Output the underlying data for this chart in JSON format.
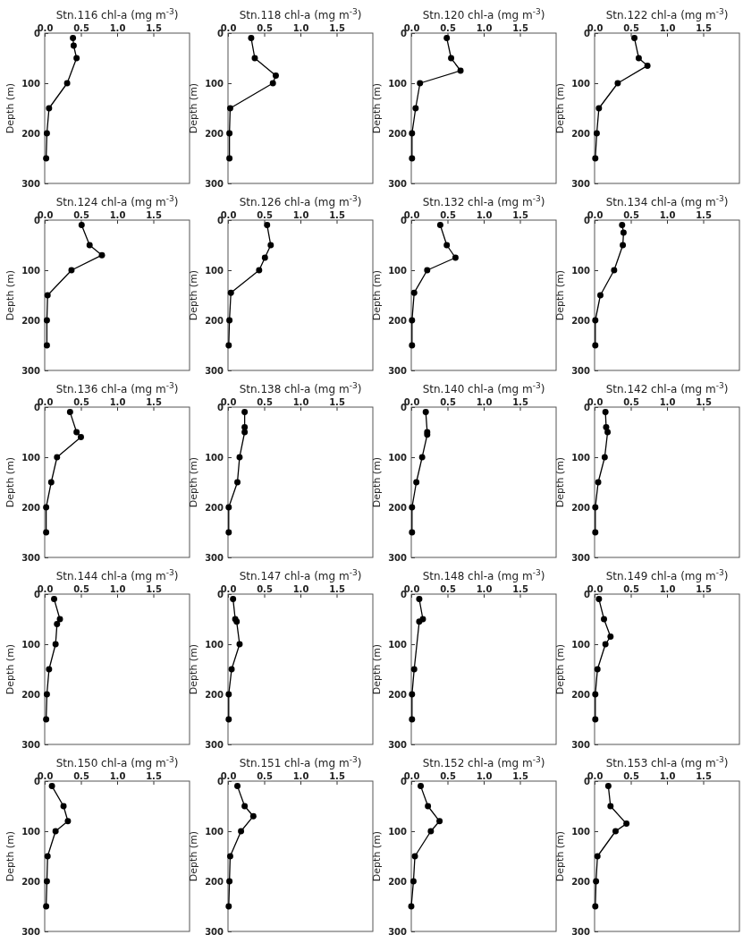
{
  "chart_data": [
    {
      "type": "line",
      "title": "Stn.116 chl-a (mg m$^{-3}$)",
      "ylabel": "Depth (m)",
      "x": [
        0.39,
        0.4,
        0.44,
        0.31,
        0.06,
        0.03,
        0.02
      ],
      "values": [
        10,
        25,
        50,
        100,
        150,
        200,
        250
      ],
      "color": "#000000",
      "marker": "circle",
      "line_style": "solid",
      "xlim": [
        0,
        2
      ],
      "ylim": [
        300,
        0
      ],
      "xticks": [
        {
          "value": 0,
          "label": "0.0"
        },
        {
          "value": 0.5,
          "label": "0.5"
        },
        {
          "value": 1,
          "label": "1.0"
        },
        {
          "value": 1.5,
          "label": "1.5"
        }
      ],
      "yticks": [
        0,
        100,
        200,
        300
      ],
      "grid": false
    },
    {
      "type": "line",
      "title": "Stn.118 chl-a (mg m$^{-3}$)",
      "ylabel": "Depth (m)",
      "x": [
        0.32,
        0.37,
        0.66,
        0.62,
        0.03,
        0.02,
        0.02
      ],
      "values": [
        10,
        50,
        85,
        100,
        150,
        200,
        250
      ],
      "color": "#000000",
      "marker": "circle",
      "line_style": "solid",
      "xlim": [
        0,
        2
      ],
      "ylim": [
        300,
        0
      ],
      "xticks": [
        {
          "value": 0,
          "label": "0.0"
        },
        {
          "value": 0.5,
          "label": "0.5"
        },
        {
          "value": 1,
          "label": "1.0"
        },
        {
          "value": 1.5,
          "label": "1.5"
        }
      ],
      "yticks": [
        0,
        100,
        200,
        300
      ],
      "grid": false
    },
    {
      "type": "line",
      "title": "Stn.120 chl-a (mg m$^{-3}$)",
      "ylabel": "Depth (m)",
      "x": [
        0.49,
        0.55,
        0.68,
        0.12,
        0.06,
        0.01,
        0.01
      ],
      "values": [
        10,
        50,
        75,
        100,
        150,
        200,
        250
      ],
      "color": "#000000",
      "marker": "circle",
      "line_style": "solid",
      "xlim": [
        0,
        2
      ],
      "ylim": [
        300,
        0
      ],
      "xticks": [
        {
          "value": 0,
          "label": "0.0"
        },
        {
          "value": 0.5,
          "label": "0.5"
        },
        {
          "value": 1,
          "label": "1.0"
        },
        {
          "value": 1.5,
          "label": "1.5"
        }
      ],
      "yticks": [
        0,
        100,
        200,
        300
      ],
      "grid": false
    },
    {
      "type": "line",
      "title": "Stn.122 chl-a (mg m$^{-3}$)",
      "ylabel": "Depth (m)",
      "x": [
        0.55,
        0.61,
        0.73,
        0.32,
        0.06,
        0.03,
        0.01
      ],
      "values": [
        10,
        50,
        65,
        100,
        150,
        200,
        250
      ],
      "color": "#000000",
      "marker": "circle",
      "line_style": "solid",
      "xlim": [
        0,
        2
      ],
      "ylim": [
        300,
        0
      ],
      "xticks": [
        {
          "value": 0,
          "label": "0.0"
        },
        {
          "value": 0.5,
          "label": "0.5"
        },
        {
          "value": 1,
          "label": "1.0"
        },
        {
          "value": 1.5,
          "label": "1.5"
        }
      ],
      "yticks": [
        0,
        100,
        200,
        300
      ],
      "grid": false
    },
    {
      "type": "line",
      "title": "Stn.124 chl-a (mg m$^{-3}$)",
      "ylabel": "Depth (m)",
      "x": [
        0.51,
        0.62,
        0.79,
        0.37,
        0.04,
        0.03,
        0.03
      ],
      "values": [
        10,
        50,
        70,
        100,
        150,
        200,
        250
      ],
      "color": "#000000",
      "marker": "circle",
      "line_style": "solid",
      "xlim": [
        0,
        2
      ],
      "ylim": [
        300,
        0
      ],
      "xticks": [
        {
          "value": 0,
          "label": "0.0"
        },
        {
          "value": 0.5,
          "label": "0.5"
        },
        {
          "value": 1,
          "label": "1.0"
        },
        {
          "value": 1.5,
          "label": "1.5"
        }
      ],
      "yticks": [
        0,
        100,
        200,
        300
      ],
      "grid": false
    },
    {
      "type": "line",
      "title": "Stn.126 chl-a (mg m$^{-3}$)",
      "ylabel": "Depth (m)",
      "x": [
        0.54,
        0.59,
        0.51,
        0.43,
        0.04,
        0.02,
        0.01
      ],
      "values": [
        10,
        50,
        75,
        100,
        145,
        200,
        250
      ],
      "color": "#000000",
      "marker": "circle",
      "line_style": "solid",
      "xlim": [
        0,
        2
      ],
      "ylim": [
        300,
        0
      ],
      "xticks": [
        {
          "value": 0,
          "label": "0.0"
        },
        {
          "value": 0.5,
          "label": "0.5"
        },
        {
          "value": 1,
          "label": "1.0"
        },
        {
          "value": 1.5,
          "label": "1.5"
        }
      ],
      "yticks": [
        0,
        100,
        200,
        300
      ],
      "grid": false
    },
    {
      "type": "line",
      "title": "Stn.132 chl-a (mg m$^{-3}$)",
      "ylabel": "Depth (m)",
      "x": [
        0.4,
        0.49,
        0.61,
        0.22,
        0.04,
        0.01,
        0.01
      ],
      "values": [
        10,
        50,
        75,
        100,
        145,
        200,
        250
      ],
      "color": "#000000",
      "marker": "circle",
      "line_style": "solid",
      "xlim": [
        0,
        2
      ],
      "ylim": [
        300,
        0
      ],
      "xticks": [
        {
          "value": 0,
          "label": "0.0"
        },
        {
          "value": 0.5,
          "label": "0.5"
        },
        {
          "value": 1,
          "label": "1.0"
        },
        {
          "value": 1.5,
          "label": "1.5"
        }
      ],
      "yticks": [
        0,
        100,
        200,
        300
      ],
      "grid": false
    },
    {
      "type": "line",
      "title": "Stn.134 chl-a (mg m$^{-3}$)",
      "ylabel": "Depth (m)",
      "x": [
        0.38,
        0.4,
        0.39,
        0.27,
        0.08,
        0.01,
        0.01
      ],
      "values": [
        10,
        25,
        50,
        100,
        150,
        200,
        250
      ],
      "color": "#000000",
      "marker": "circle",
      "line_style": "solid",
      "xlim": [
        0,
        2
      ],
      "ylim": [
        300,
        0
      ],
      "xticks": [
        {
          "value": 0,
          "label": "0.0"
        },
        {
          "value": 0.5,
          "label": "0.5"
        },
        {
          "value": 1,
          "label": "1.0"
        },
        {
          "value": 1.5,
          "label": "1.5"
        }
      ],
      "yticks": [
        0,
        100,
        200,
        300
      ],
      "grid": false
    },
    {
      "type": "line",
      "title": "Stn.136 chl-a (mg m$^{-3}$)",
      "ylabel": "Depth (m)",
      "x": [
        0.35,
        0.44,
        0.5,
        0.17,
        0.09,
        0.02,
        0.02
      ],
      "values": [
        10,
        50,
        60,
        100,
        150,
        200,
        250
      ],
      "color": "#000000",
      "marker": "circle",
      "line_style": "solid",
      "xlim": [
        0,
        2
      ],
      "ylim": [
        300,
        0
      ],
      "xticks": [
        {
          "value": 0,
          "label": "0.0"
        },
        {
          "value": 0.5,
          "label": "0.5"
        },
        {
          "value": 1,
          "label": "1.0"
        },
        {
          "value": 1.5,
          "label": "1.5"
        }
      ],
      "yticks": [
        0,
        100,
        200,
        300
      ],
      "grid": false
    },
    {
      "type": "line",
      "title": "Stn.138 chl-a (mg m$^{-3}$)",
      "ylabel": "Depth (m)",
      "x": [
        0.23,
        0.23,
        0.23,
        0.16,
        0.13,
        0.01,
        0.01
      ],
      "values": [
        10,
        40,
        50,
        100,
        150,
        200,
        250
      ],
      "color": "#000000",
      "marker": "circle",
      "line_style": "solid",
      "xlim": [
        0,
        2
      ],
      "ylim": [
        300,
        0
      ],
      "xticks": [
        {
          "value": 0,
          "label": "0.0"
        },
        {
          "value": 0.5,
          "label": "0.5"
        },
        {
          "value": 1,
          "label": "1.0"
        },
        {
          "value": 1.5,
          "label": "1.5"
        }
      ],
      "yticks": [
        0,
        100,
        200,
        300
      ],
      "grid": false
    },
    {
      "type": "line",
      "title": "Stn.140 chl-a (mg m$^{-3}$)",
      "ylabel": "Depth (m)",
      "x": [
        0.2,
        0.22,
        0.22,
        0.15,
        0.07,
        0.01,
        0.01
      ],
      "values": [
        10,
        50,
        55,
        100,
        150,
        200,
        250
      ],
      "color": "#000000",
      "marker": "circle",
      "line_style": "solid",
      "xlim": [
        0,
        2
      ],
      "ylim": [
        300,
        0
      ],
      "xticks": [
        {
          "value": 0,
          "label": "0.0"
        },
        {
          "value": 0.5,
          "label": "0.5"
        },
        {
          "value": 1,
          "label": "1.0"
        },
        {
          "value": 1.5,
          "label": "1.5"
        }
      ],
      "yticks": [
        0,
        100,
        200,
        300
      ],
      "grid": false
    },
    {
      "type": "line",
      "title": "Stn.142 chl-a (mg m$^{-3}$)",
      "ylabel": "Depth (m)",
      "x": [
        0.15,
        0.16,
        0.18,
        0.14,
        0.05,
        0.01,
        0.01
      ],
      "values": [
        10,
        40,
        50,
        100,
        150,
        200,
        250
      ],
      "color": "#000000",
      "marker": "circle",
      "line_style": "solid",
      "xlim": [
        0,
        2
      ],
      "ylim": [
        300,
        0
      ],
      "xticks": [
        {
          "value": 0,
          "label": "0.0"
        },
        {
          "value": 0.5,
          "label": "0.5"
        },
        {
          "value": 1,
          "label": "1.0"
        },
        {
          "value": 1.5,
          "label": "1.5"
        }
      ],
      "yticks": [
        0,
        100,
        200,
        300
      ],
      "grid": false
    },
    {
      "type": "line",
      "title": "Stn.144 chl-a (mg m$^{-3}$)",
      "ylabel": "Depth (m)",
      "x": [
        0.13,
        0.21,
        0.17,
        0.15,
        0.06,
        0.03,
        0.02
      ],
      "values": [
        10,
        50,
        60,
        100,
        150,
        200,
        250
      ],
      "color": "#000000",
      "marker": "circle",
      "line_style": "solid",
      "xlim": [
        0,
        2
      ],
      "ylim": [
        300,
        0
      ],
      "xticks": [
        {
          "value": 0,
          "label": "0.0"
        },
        {
          "value": 0.5,
          "label": "0.5"
        },
        {
          "value": 1,
          "label": "1.0"
        },
        {
          "value": 1.5,
          "label": "1.5"
        }
      ],
      "yticks": [
        0,
        100,
        200,
        300
      ],
      "grid": false
    },
    {
      "type": "line",
      "title": "Stn.147 chl-a (mg m$^{-3}$)",
      "ylabel": "Depth (m)",
      "x": [
        0.07,
        0.1,
        0.12,
        0.16,
        0.05,
        0.01,
        0.01
      ],
      "values": [
        10,
        50,
        55,
        100,
        150,
        200,
        250
      ],
      "color": "#000000",
      "marker": "circle",
      "line_style": "solid",
      "xlim": [
        0,
        2
      ],
      "ylim": [
        300,
        0
      ],
      "xticks": [
        {
          "value": 0,
          "label": "0.0"
        },
        {
          "value": 0.5,
          "label": "0.5"
        },
        {
          "value": 1,
          "label": "1.0"
        },
        {
          "value": 1.5,
          "label": "1.5"
        }
      ],
      "yticks": [
        0,
        100,
        200,
        300
      ],
      "grid": false
    },
    {
      "type": "line",
      "title": "Stn.148 chl-a (mg m$^{-3}$)",
      "ylabel": "Depth (m)",
      "x": [
        0.11,
        0.16,
        0.11,
        0.04,
        0.01,
        0.01
      ],
      "values": [
        10,
        50,
        55,
        150,
        200,
        250
      ],
      "color": "#000000",
      "marker": "circle",
      "line_style": "solid",
      "xlim": [
        0,
        2
      ],
      "ylim": [
        300,
        0
      ],
      "xticks": [
        {
          "value": 0,
          "label": "0.0"
        },
        {
          "value": 0.5,
          "label": "0.5"
        },
        {
          "value": 1,
          "label": "1.0"
        },
        {
          "value": 1.5,
          "label": "1.5"
        }
      ],
      "yticks": [
        0,
        100,
        200,
        300
      ],
      "grid": false
    },
    {
      "type": "line",
      "title": "Stn.149 chl-a (mg m$^{-3}$)",
      "ylabel": "Depth (m)",
      "x": [
        0.06,
        0.13,
        0.22,
        0.15,
        0.04,
        0.01,
        0.01
      ],
      "values": [
        10,
        50,
        85,
        100,
        150,
        200,
        250
      ],
      "color": "#000000",
      "marker": "circle",
      "line_style": "solid",
      "xlim": [
        0,
        2
      ],
      "ylim": [
        300,
        0
      ],
      "xticks": [
        {
          "value": 0,
          "label": "0.0"
        },
        {
          "value": 0.5,
          "label": "0.5"
        },
        {
          "value": 1,
          "label": "1.0"
        },
        {
          "value": 1.5,
          "label": "1.5"
        }
      ],
      "yticks": [
        0,
        100,
        200,
        300
      ],
      "grid": false
    },
    {
      "type": "line",
      "title": "Stn.150 chl-a (mg m$^{-3}$)",
      "ylabel": "Depth (m)",
      "x": [
        0.1,
        0.26,
        0.32,
        0.15,
        0.04,
        0.03,
        0.02
      ],
      "values": [
        10,
        50,
        80,
        100,
        150,
        200,
        250
      ],
      "color": "#000000",
      "marker": "circle",
      "line_style": "solid",
      "xlim": [
        0,
        2
      ],
      "ylim": [
        300,
        0
      ],
      "xticks": [
        {
          "value": 0,
          "label": "0.0"
        },
        {
          "value": 0.5,
          "label": "0.5"
        },
        {
          "value": 1,
          "label": "1.0"
        },
        {
          "value": 1.5,
          "label": "1.5"
        }
      ],
      "yticks": [
        0,
        100,
        200,
        300
      ],
      "grid": false
    },
    {
      "type": "line",
      "title": "Stn.151 chl-a (mg m$^{-3}$)",
      "ylabel": "Depth (m)",
      "x": [
        0.13,
        0.23,
        0.35,
        0.18,
        0.03,
        0.02,
        0.01
      ],
      "values": [
        10,
        50,
        70,
        100,
        150,
        200,
        250
      ],
      "color": "#000000",
      "marker": "circle",
      "line_style": "solid",
      "xlim": [
        0,
        2
      ],
      "ylim": [
        300,
        0
      ],
      "xticks": [
        {
          "value": 0,
          "label": "0.0"
        },
        {
          "value": 0.5,
          "label": "0.5"
        },
        {
          "value": 1,
          "label": "1.0"
        },
        {
          "value": 1.5,
          "label": "1.5"
        }
      ],
      "yticks": [
        0,
        100,
        200,
        300
      ],
      "grid": false
    },
    {
      "type": "line",
      "title": "Stn.152 chl-a (mg m$^{-3}$)",
      "ylabel": "Depth (m)",
      "x": [
        0.13,
        0.23,
        0.39,
        0.27,
        0.05,
        0.03,
        0.0
      ],
      "values": [
        10,
        50,
        80,
        100,
        150,
        200,
        250
      ],
      "color": "#000000",
      "marker": "circle",
      "line_style": "solid",
      "xlim": [
        0,
        2
      ],
      "ylim": [
        300,
        0
      ],
      "xticks": [
        {
          "value": 0,
          "label": "0.0"
        },
        {
          "value": 0.5,
          "label": "0.5"
        },
        {
          "value": 1,
          "label": "1.0"
        },
        {
          "value": 1.5,
          "label": "1.5"
        }
      ],
      "yticks": [
        0,
        100,
        200,
        300
      ],
      "grid": false
    },
    {
      "type": "line",
      "title": "Stn.153 chl-a (mg m$^{-3}$)",
      "ylabel": "Depth (m)",
      "x": [
        0.19,
        0.22,
        0.44,
        0.29,
        0.04,
        0.02,
        0.01
      ],
      "values": [
        10,
        50,
        85,
        100,
        150,
        200,
        250
      ],
      "color": "#000000",
      "marker": "circle",
      "line_style": "solid",
      "xlim": [
        0,
        2
      ],
      "ylim": [
        300,
        0
      ],
      "xticks": [
        {
          "value": 0,
          "label": "0.0"
        },
        {
          "value": 0.5,
          "label": "0.5"
        },
        {
          "value": 1,
          "label": "1.0"
        },
        {
          "value": 1.5,
          "label": "1.5"
        }
      ],
      "yticks": [
        0,
        100,
        200,
        300
      ],
      "grid": false
    }
  ]
}
